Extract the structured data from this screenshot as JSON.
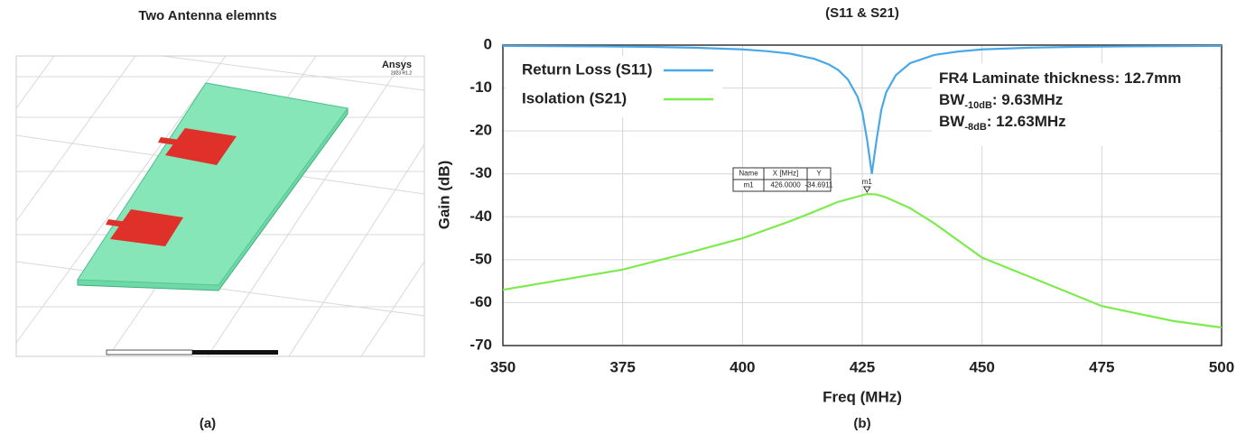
{
  "panel_a": {
    "title": "Two Antenna elemnts",
    "logo": "Ansys",
    "version": "2023 R1.2",
    "caption": "(a)"
  },
  "chart_data": {
    "type": "line",
    "title": "(S11 & S21)",
    "x_label": "Freq (MHz)",
    "y_label": "Gain (dB)",
    "caption": "(b)",
    "xlim": [
      350,
      500
    ],
    "xticks": [
      350,
      375,
      400,
      425,
      450,
      475,
      500
    ],
    "ylim": [
      -70,
      0
    ],
    "yticks": [
      0,
      -10,
      -20,
      -30,
      -40,
      -50,
      -60,
      -70
    ],
    "grid": true,
    "series": [
      {
        "name": "Return Loss (S11)",
        "color": "#4aa8e6",
        "x": [
          350,
          360,
          370,
          380,
          390,
          400,
          405,
          410,
          415,
          418,
          420,
          422,
          424,
          425,
          426,
          427,
          428,
          429,
          430,
          432,
          435,
          440,
          445,
          450,
          460,
          470,
          480,
          490,
          500
        ],
        "values": [
          -0.2,
          -0.25,
          -0.3,
          -0.4,
          -0.6,
          -1.0,
          -1.4,
          -2.0,
          -3.2,
          -4.5,
          -5.8,
          -8.0,
          -12,
          -15.5,
          -22,
          -30,
          -22,
          -15,
          -11,
          -7,
          -4.2,
          -2.3,
          -1.5,
          -1.0,
          -0.6,
          -0.4,
          -0.3,
          -0.25,
          -0.2
        ]
      },
      {
        "name": "Isolation (S21)",
        "color": "#7deb4e",
        "x": [
          350,
          375,
          390,
          400,
          410,
          415,
          420,
          425,
          426,
          428,
          430,
          435,
          440,
          450,
          460,
          475,
          490,
          500
        ],
        "values": [
          -57,
          -52.3,
          -48,
          -45,
          -41,
          -38.8,
          -36.5,
          -35,
          -34.69,
          -34.8,
          -35.5,
          -38,
          -41.5,
          -49.5,
          -54,
          -60.8,
          -64.3,
          -65.8
        ]
      }
    ],
    "annotations": [
      {
        "text": "FR4 Laminate thickness: 12.7mm"
      },
      {
        "text": "BW",
        "sub": "-10dB",
        "rest": ": 9.63MHz"
      },
      {
        "text": "BW",
        "sub": "-8dB",
        "rest": ": 12.63MHz"
      }
    ],
    "marker": {
      "name": "m1",
      "x": {
        "value": 426,
        "label": "426.0000"
      },
      "y": -34.6911
    },
    "marker_table": {
      "header": [
        "Name",
        "X [MHz]",
        "Y"
      ]
    }
  }
}
